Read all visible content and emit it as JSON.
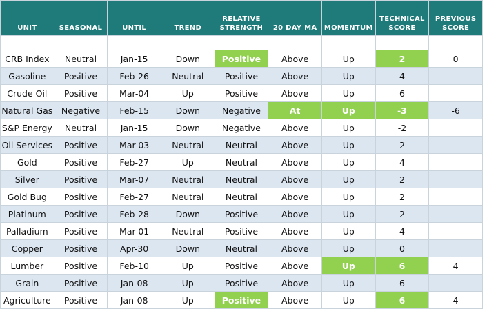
{
  "table": {
    "header": [
      "UNIT",
      "SEASONAL",
      "UNTIL",
      "TREND",
      "RELATIVE STRENGTH",
      "20 DAY MA",
      "MOMENTUM",
      "TECHNICAL SCORE",
      "PREVIOUS SCORE"
    ],
    "rows": [
      [
        "CRB Index",
        "Neutral",
        "Jan-15",
        "Down",
        "Positive",
        "Above",
        "Up",
        2,
        0
      ],
      [
        "Gasoline",
        "Positive",
        "Feb-26",
        "Neutral",
        "Positive",
        "Above",
        "Up",
        4,
        null
      ],
      [
        "Crude Oil",
        "Positive",
        "Mar-04",
        "Up",
        "Positive",
        "Above",
        "Up",
        6,
        null
      ],
      [
        "Natural Gas",
        "Negative",
        "Feb-15",
        "Down",
        "Negative",
        "At",
        "Up",
        -3,
        -6
      ],
      [
        "S&P Energy",
        "Neutral",
        "Jan-15",
        "Down",
        "Negative",
        "Above",
        "Up",
        -2,
        null
      ],
      [
        "Oil Services",
        "Positive",
        "Mar-03",
        "Neutral",
        "Neutral",
        "Above",
        "Up",
        2,
        null
      ],
      [
        "Gold",
        "Positive",
        "Feb-27",
        "Up",
        "Neutral",
        "Above",
        "Up",
        4,
        null
      ],
      [
        "Silver",
        "Positive",
        "Mar-07",
        "Neutral",
        "Neutral",
        "Above",
        "Up",
        2,
        null
      ],
      [
        "Gold Bug",
        "Positive",
        "Feb-27",
        "Neutral",
        "Neutral",
        "Above",
        "Up",
        2,
        null
      ],
      [
        "Platinum",
        "Positive",
        "Feb-28",
        "Down",
        "Positive",
        "Above",
        "Up",
        2,
        null
      ],
      [
        "Palladium",
        "Positive",
        "Mar-01",
        "Neutral",
        "Positive",
        "Above",
        "Up",
        4,
        null
      ],
      [
        "Copper",
        "Positive",
        "Apr-30",
        "Down",
        "Neutral",
        "Above",
        "Up",
        0,
        null
      ],
      [
        "Lumber",
        "Positive",
        "Feb-10",
        "Up",
        "Positive",
        "Above",
        "Up",
        6,
        4
      ],
      [
        "Grain",
        "Positive",
        "Jan-08",
        "Up",
        "Positive",
        "Above",
        "Up",
        6,
        null
      ],
      [
        "Agriculture",
        "Positive",
        "Jan-08",
        "Up",
        "Positive",
        "Above",
        "Up",
        6,
        4
      ]
    ]
  }
}
